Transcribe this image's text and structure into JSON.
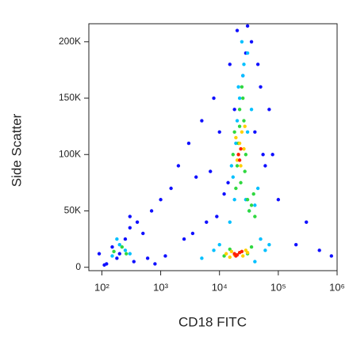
{
  "chart_data": {
    "type": "scatter",
    "x_label": "CD18 FITC",
    "y_label": "Side Scatter",
    "x_log": true,
    "xlim": [
      60,
      1000000
    ],
    "ylim": [
      -3000,
      216000
    ],
    "xticks": [
      {
        "value": 100,
        "label": "10²"
      },
      {
        "value": 1000,
        "label": "10³"
      },
      {
        "value": 10000,
        "label": "10⁴"
      },
      {
        "value": 100000,
        "label": "10⁵"
      },
      {
        "value": 1000000,
        "label": "10⁶"
      }
    ],
    "yticks": [
      0,
      {
        "value": 50000,
        "label": "50K"
      },
      {
        "value": 100000,
        "label": "100K"
      },
      {
        "value": 150000,
        "label": "150K"
      },
      {
        "value": 200000,
        "label": "200K"
      }
    ],
    "series": [
      {
        "color": "#1010ff",
        "x": [
          120,
          180,
          250,
          300,
          400,
          150,
          200,
          350,
          500,
          700,
          1000,
          1500,
          2000,
          3000,
          5000,
          8000,
          4000,
          6000,
          10000,
          15000,
          50000,
          70000,
          80000,
          100000,
          200000,
          500000,
          800000,
          12000,
          9000,
          40000,
          60000,
          35000,
          30000,
          25000,
          18000,
          14000,
          20000,
          28000,
          45000,
          55000,
          3500,
          2500,
          1200,
          800,
          90,
          110,
          300,
          600,
          7000,
          300000
        ],
        "y": [
          3000,
          8000,
          25000,
          35000,
          40000,
          18000,
          12000,
          5000,
          30000,
          50000,
          60000,
          70000,
          90000,
          110000,
          130000,
          150000,
          80000,
          40000,
          120000,
          180000,
          160000,
          140000,
          100000,
          60000,
          20000,
          15000,
          10000,
          65000,
          45000,
          120000,
          90000,
          200000,
          214000,
          170000,
          140000,
          75000,
          210000,
          190000,
          180000,
          100000,
          30000,
          25000,
          10000,
          3000,
          12000,
          2000,
          45000,
          8000,
          85000,
          40000
        ]
      },
      {
        "color": "#00c0ff",
        "x": [
          150,
          200,
          250,
          180,
          300,
          5000,
          8000,
          10000,
          40000,
          60000,
          50000,
          15000,
          18000,
          22000,
          25000,
          30000,
          20000,
          17000,
          35000,
          28000,
          24000,
          19000,
          32000,
          40000,
          45000,
          21000,
          26000,
          16000,
          30000,
          70000
        ],
        "y": [
          10000,
          20000,
          15000,
          25000,
          12000,
          8000,
          15000,
          20000,
          5000,
          15000,
          25000,
          40000,
          60000,
          150000,
          170000,
          190000,
          130000,
          80000,
          140000,
          60000,
          200000,
          110000,
          50000,
          55000,
          70000,
          160000,
          180000,
          90000,
          120000,
          20000
        ]
      },
      {
        "color": "#30d840",
        "x": [
          160,
          220,
          260,
          12000,
          15000,
          30000,
          35000,
          18000,
          22000,
          25000,
          20000,
          28000,
          19000,
          23000,
          26000,
          24000,
          21000,
          30000,
          35000,
          40000,
          17000,
          27000,
          22000,
          38000,
          32000
        ],
        "y": [
          14000,
          18000,
          12000,
          10000,
          16000,
          12000,
          18000,
          120000,
          140000,
          150000,
          90000,
          100000,
          70000,
          75000,
          130000,
          160000,
          110000,
          60000,
          55000,
          45000,
          100000,
          85000,
          125000,
          65000,
          50000
        ]
      },
      {
        "color": "#ffd000",
        "x": [
          13000,
          16000,
          25000,
          28000,
          20000,
          22000,
          24000,
          21000,
          26000,
          23000,
          19000,
          30000,
          18000,
          27000,
          15000
        ],
        "y": [
          12000,
          14000,
          10000,
          15000,
          95000,
          110000,
          120000,
          100000,
          105000,
          90000,
          115000,
          13000,
          11000,
          125000,
          9000
        ]
      },
      {
        "color": "#ff2000",
        "x": [
          18000,
          20000,
          22000,
          24000,
          21000,
          23000,
          22000,
          19000
        ],
        "y": [
          12000,
          11000,
          13000,
          14000,
          100000,
          105000,
          95000,
          10000
        ]
      }
    ]
  }
}
